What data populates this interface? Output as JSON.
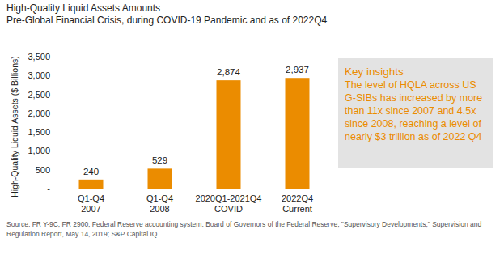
{
  "chart_data": {
    "type": "bar",
    "title": "High-Quality Liquid Assets Amounts",
    "subtitle": "Pre-Global Financial Crisis, during COVID-19 Pandemic and as of 2022Q4",
    "y_label": "High-Quality Liquid Assets ($ Billions)",
    "categories": [
      "Q1-Q4\n2007",
      "Q1-Q4\n2008",
      "2020Q1-2021Q4\nCOVID",
      "2022Q4\nCurrent"
    ],
    "values": [
      240,
      529,
      2874,
      2937
    ],
    "value_labels": [
      "240",
      "529",
      "2,874",
      "2,937"
    ],
    "color": "#eb8c00",
    "ylim": [
      0,
      3500
    ],
    "yticks": [
      {
        "value": 0,
        "label": "-"
      },
      500,
      {
        "value": 1000,
        "label": "1,000"
      },
      {
        "value": 1500,
        "label": "1,500"
      },
      {
        "value": 2000,
        "label": "2,000"
      },
      {
        "value": 2500,
        "label": "2,500"
      },
      {
        "value": 3000,
        "label": "3,000"
      },
      {
        "value": 3500,
        "label": "3,500"
      }
    ],
    "grid": false,
    "data_labels": true,
    "annotation": {
      "title": "Key insights",
      "text": "The level of HQLA across US G-SIBs has increased by more than 11x since 2007 and 4.5x since 2008, reaching a level of nearly $3 trillion as of 2022 Q4"
    },
    "source": "Source: FR Y-9C, FR 2900, Federal Reserve accounting system. Board of Governors of the Federal Reserve, \"Supervisory Developments,\" Supervision and Regulation Report, May 14, 2019; S&P Capital IQ"
  }
}
